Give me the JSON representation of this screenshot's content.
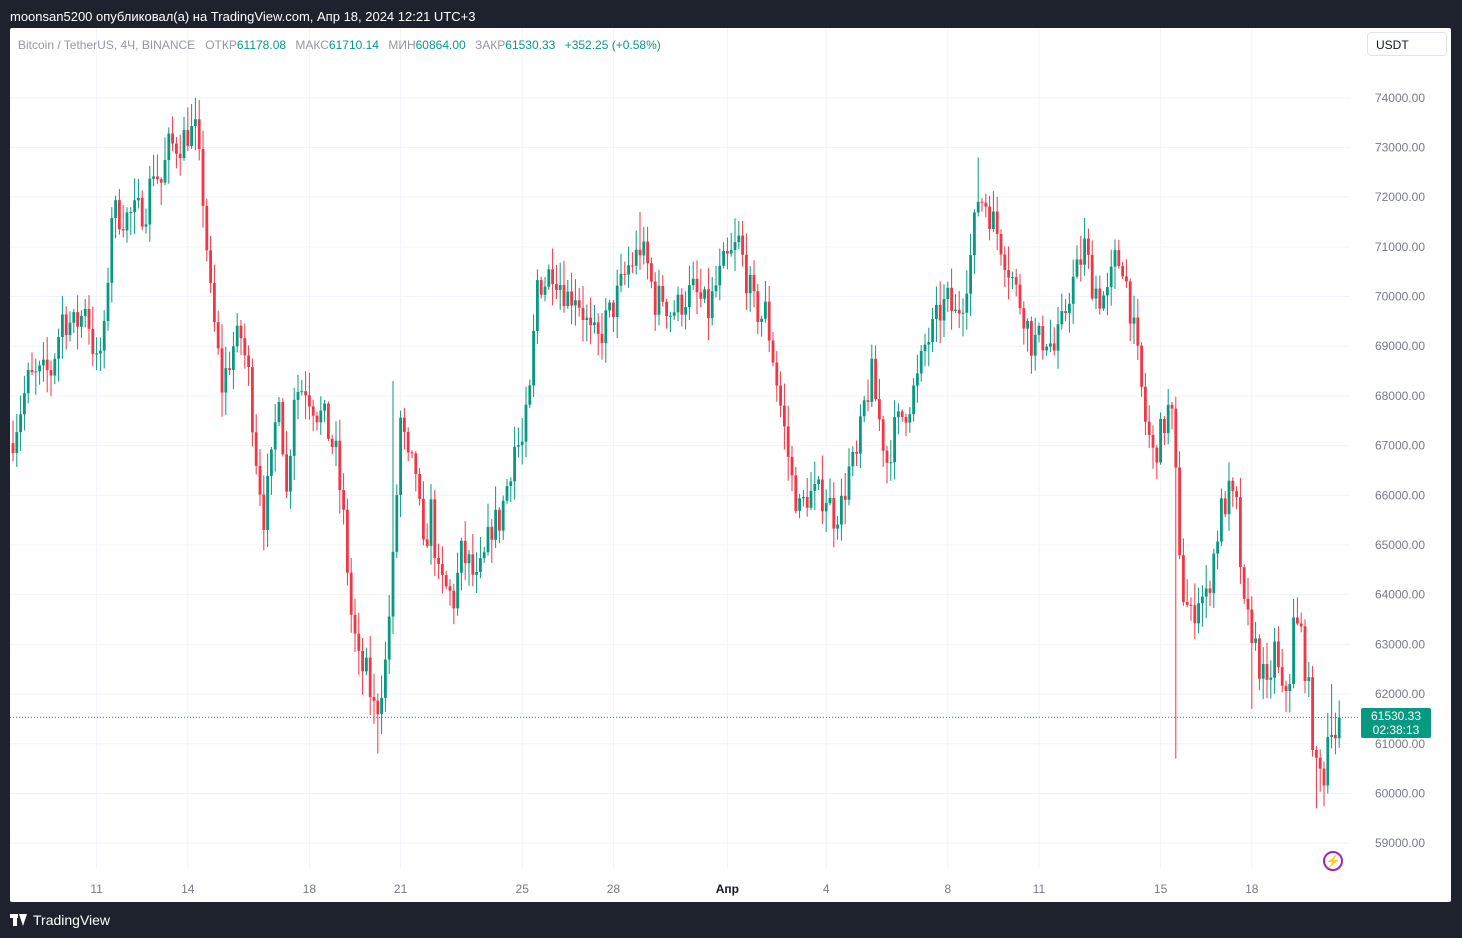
{
  "header": {
    "publish_line": "moonsan5200 опубликовал(а) на TradingView.com, Апр 18, 2024 12:21 UTC+3"
  },
  "legend": {
    "symbol": "Bitcoin / TetherUS, 4Ч, BINANCE",
    "open_label": "ОТКР",
    "open_value": "61178.08",
    "high_label": "МАКС",
    "high_value": "61710.14",
    "low_label": "МИН",
    "low_value": "60864.00",
    "close_label": "ЗАКР",
    "close_value": "61530.33",
    "change": "+352.25 (+0.58%)"
  },
  "currency": "USDT",
  "price_badge": {
    "price": "61530.33",
    "countdown": "02:38:13"
  },
  "footer": {
    "brand": "TradingView"
  },
  "colors": {
    "up": "#089981",
    "down": "#f23645",
    "grid": "#f0f3fa",
    "axis_text": "#787b86"
  },
  "chart_data": {
    "type": "candlestick",
    "ylim": [
      58500,
      74800
    ],
    "y_ticks": [
      "74000.00",
      "73000.00",
      "72000.00",
      "71000.00",
      "70000.00",
      "69000.00",
      "68000.00",
      "67000.00",
      "66000.00",
      "65000.00",
      "64000.00",
      "63000.00",
      "62000.00",
      "61000.00",
      "60000.00",
      "59000.00"
    ],
    "x_ticks": [
      {
        "label": "11",
        "pos": 22
      },
      {
        "label": "14",
        "pos": 46
      },
      {
        "label": "18",
        "pos": 78
      },
      {
        "label": "21",
        "pos": 102
      },
      {
        "label": "25",
        "pos": 134
      },
      {
        "label": "28",
        "pos": 158
      },
      {
        "label": "Апр",
        "pos": 188
      },
      {
        "label": "4",
        "pos": 214
      },
      {
        "label": "8",
        "pos": 246
      },
      {
        "label": "11",
        "pos": 270
      },
      {
        "label": "15",
        "pos": 302
      },
      {
        "label": "18",
        "pos": 326
      }
    ],
    "current_price": 61530.33,
    "anchors": [
      [
        0,
        67200
      ],
      [
        4,
        68300
      ],
      [
        7,
        68400
      ],
      [
        10,
        68500
      ],
      [
        13,
        69600
      ],
      [
        16,
        69400
      ],
      [
        18,
        69600
      ],
      [
        19,
        69900
      ],
      [
        22,
        68600
      ],
      [
        24,
        69200
      ],
      [
        26,
        71700
      ],
      [
        30,
        71600
      ],
      [
        33,
        71700
      ],
      [
        35,
        71800
      ],
      [
        37,
        72600
      ],
      [
        39,
        72300
      ],
      [
        41,
        73000
      ],
      [
        44,
        73100
      ],
      [
        46,
        73300
      ],
      [
        48,
        73300
      ],
      [
        50,
        72000
      ],
      [
        52,
        70000
      ],
      [
        55,
        68200
      ],
      [
        58,
        69000
      ],
      [
        60,
        69200
      ],
      [
        62,
        68400
      ],
      [
        64,
        66800
      ],
      [
        66,
        65600
      ],
      [
        68,
        66600
      ],
      [
        70,
        68200
      ],
      [
        72,
        66000
      ],
      [
        74,
        68100
      ],
      [
        77,
        68200
      ],
      [
        80,
        67700
      ],
      [
        82,
        67500
      ],
      [
        85,
        66800
      ],
      [
        87,
        65500
      ],
      [
        89,
        63600
      ],
      [
        91,
        62600
      ],
      [
        93,
        62400
      ],
      [
        95,
        61700
      ],
      [
        96,
        61800
      ],
      [
        98,
        62600
      ],
      [
        100,
        64600
      ],
      [
        102,
        67500
      ],
      [
        104,
        66600
      ],
      [
        106,
        66500
      ],
      [
        108,
        64800
      ],
      [
        110,
        65700
      ],
      [
        112,
        64300
      ],
      [
        114,
        64100
      ],
      [
        116,
        63900
      ],
      [
        118,
        64800
      ],
      [
        120,
        64600
      ],
      [
        122,
        64200
      ],
      [
        124,
        64700
      ],
      [
        126,
        65400
      ],
      [
        128,
        65500
      ],
      [
        130,
        66200
      ],
      [
        132,
        67000
      ],
      [
        134,
        67000
      ],
      [
        136,
        68000
      ],
      [
        138,
        70300
      ],
      [
        140,
        70300
      ],
      [
        142,
        70600
      ],
      [
        144,
        70300
      ],
      [
        146,
        70000
      ],
      [
        148,
        70100
      ],
      [
        150,
        69700
      ],
      [
        152,
        69200
      ],
      [
        154,
        69100
      ],
      [
        156,
        69500
      ],
      [
        158,
        69800
      ],
      [
        160,
        70200
      ],
      [
        162,
        70600
      ],
      [
        164,
        70800
      ],
      [
        165,
        71000
      ],
      [
        167,
        70600
      ],
      [
        169,
        69900
      ],
      [
        171,
        70000
      ],
      [
        173,
        69700
      ],
      [
        175,
        69800
      ],
      [
        177,
        70000
      ],
      [
        179,
        70100
      ],
      [
        181,
        69900
      ],
      [
        183,
        69700
      ],
      [
        185,
        70200
      ],
      [
        187,
        70600
      ],
      [
        189,
        70800
      ],
      [
        191,
        71100
      ],
      [
        193,
        70400
      ],
      [
        195,
        69800
      ],
      [
        197,
        69600
      ],
      [
        198,
        69700
      ],
      [
        200,
        68800
      ],
      [
        203,
        67300
      ],
      [
        205,
        66300
      ],
      [
        207,
        65700
      ],
      [
        209,
        66000
      ],
      [
        212,
        66000
      ],
      [
        214,
        66000
      ],
      [
        216,
        65600
      ],
      [
        218,
        65800
      ],
      [
        220,
        66500
      ],
      [
        222,
        66700
      ],
      [
        224,
        67800
      ],
      [
        226,
        68400
      ],
      [
        228,
        67500
      ],
      [
        230,
        66700
      ],
      [
        232,
        67300
      ],
      [
        234,
        67600
      ],
      [
        236,
        67900
      ],
      [
        238,
        68300
      ],
      [
        240,
        69000
      ],
      [
        242,
        69300
      ],
      [
        244,
        69700
      ],
      [
        246,
        69900
      ],
      [
        248,
        69600
      ],
      [
        250,
        70000
      ],
      [
        252,
        70800
      ],
      [
        254,
        72000
      ],
      [
        256,
        71900
      ],
      [
        258,
        71500
      ],
      [
        260,
        71100
      ],
      [
        262,
        70600
      ],
      [
        264,
        70100
      ],
      [
        266,
        69700
      ],
      [
        268,
        69100
      ],
      [
        270,
        69100
      ],
      [
        272,
        69200
      ],
      [
        274,
        68900
      ],
      [
        276,
        69400
      ],
      [
        278,
        70100
      ],
      [
        280,
        70500
      ],
      [
        282,
        71000
      ],
      [
        284,
        70300
      ],
      [
        286,
        70000
      ],
      [
        288,
        70000
      ],
      [
        290,
        70700
      ],
      [
        292,
        70700
      ],
      [
        294,
        69800
      ],
      [
        296,
        68700
      ],
      [
        298,
        67500
      ],
      [
        300,
        66800
      ],
      [
        302,
        67200
      ],
      [
        304,
        67700
      ],
      [
        305,
        67500
      ],
      [
        306,
        66300
      ],
      [
        307,
        65000
      ],
      [
        308,
        64000
      ],
      [
        310,
        63500
      ],
      [
        312,
        64000
      ],
      [
        314,
        63900
      ],
      [
        316,
        64800
      ],
      [
        318,
        65700
      ],
      [
        320,
        66000
      ],
      [
        322,
        65700
      ],
      [
        324,
        63600
      ],
      [
        326,
        63300
      ],
      [
        328,
        62600
      ],
      [
        330,
        62000
      ],
      [
        332,
        62900
      ],
      [
        334,
        61900
      ],
      [
        336,
        62400
      ],
      [
        337,
        63400
      ],
      [
        339,
        63200
      ],
      [
        341,
        62000
      ],
      [
        343,
        60400
      ],
      [
        345,
        60400
      ],
      [
        346,
        61200
      ],
      [
        347,
        61500
      ],
      [
        348,
        61200
      ],
      [
        349,
        61530
      ]
    ]
  }
}
